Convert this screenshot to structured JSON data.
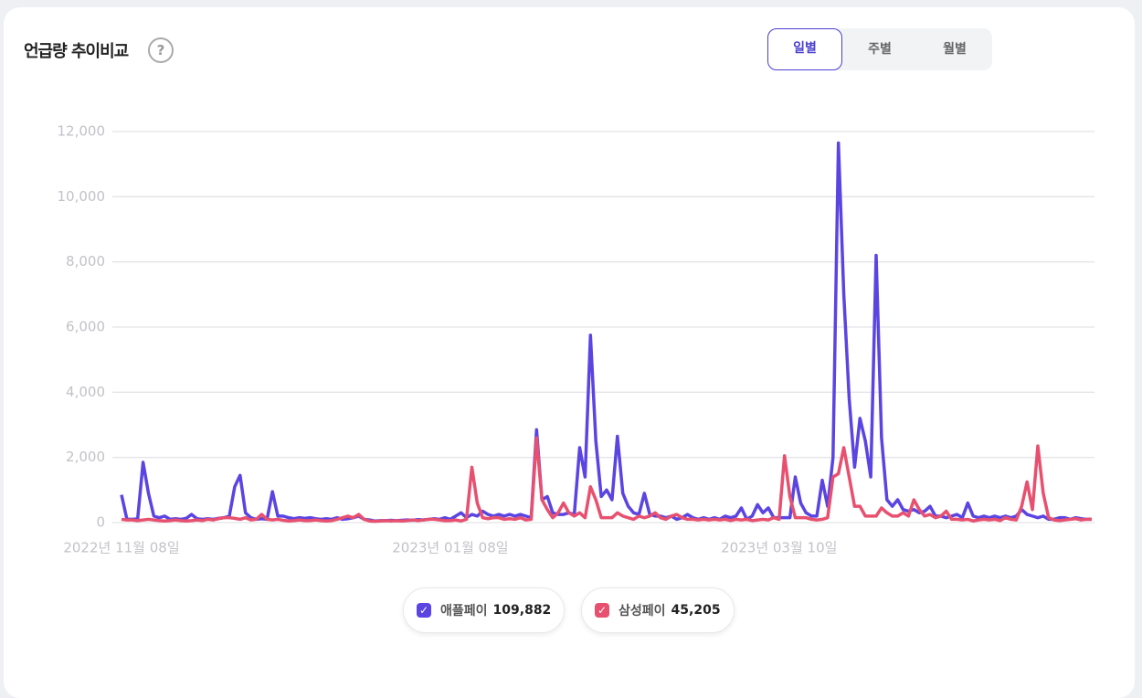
{
  "header": {
    "title": "언급량 추이비교",
    "help": "?"
  },
  "tabs": [
    "일별",
    "주별",
    "월별"
  ],
  "selected_tab": 0,
  "chart_data": {
    "type": "line",
    "categories": [
      "2022년 11월 08일",
      null,
      null,
      null,
      null,
      null,
      null,
      null,
      null,
      null,
      null,
      null,
      null,
      null,
      null,
      null,
      null,
      null,
      null,
      null,
      null,
      null,
      null,
      null,
      null,
      null,
      null,
      null,
      null,
      null,
      null,
      null,
      null,
      null,
      null,
      null,
      null,
      null,
      null,
      null,
      null,
      null,
      null,
      null,
      null,
      null,
      null,
      null,
      null,
      null,
      null,
      null,
      null,
      null,
      null,
      null,
      null,
      null,
      null,
      null,
      null,
      "2023년 01월 08일",
      null,
      null,
      null,
      null,
      null,
      null,
      null,
      null,
      null,
      null,
      null,
      null,
      null,
      null,
      null,
      null,
      null,
      null,
      null,
      null,
      null,
      null,
      null,
      null,
      null,
      null,
      null,
      null,
      null,
      null,
      null,
      null,
      null,
      null,
      null,
      null,
      null,
      null,
      null,
      null,
      null,
      null,
      null,
      null,
      null,
      null,
      null,
      null,
      null,
      null,
      null,
      null,
      null,
      null,
      null,
      null,
      null,
      null,
      null,
      null,
      "2023년 03월 10일",
      null,
      null,
      null,
      null,
      null,
      null,
      null,
      null,
      null,
      null,
      null,
      null,
      null,
      null,
      null,
      null,
      null,
      null,
      null,
      null,
      null,
      null,
      null,
      null,
      null,
      null,
      null,
      null,
      null,
      null,
      null,
      null,
      null,
      null,
      null,
      null,
      null,
      null,
      null,
      null,
      null,
      null,
      null,
      null,
      null,
      null,
      null,
      null,
      null,
      null,
      null,
      null,
      null,
      null,
      null,
      null,
      null,
      null
    ],
    "series": [
      {
        "name": "애플페이",
        "color": "#5a45e2",
        "total": "109,882",
        "values": [
          850,
          100,
          100,
          120,
          1850,
          900,
          200,
          150,
          200,
          100,
          120,
          100,
          130,
          250,
          120,
          100,
          120,
          100,
          130,
          150,
          200,
          1100,
          1450,
          300,
          150,
          100,
          120,
          100,
          950,
          200,
          200,
          150,
          120,
          150,
          130,
          150,
          120,
          100,
          120,
          100,
          150,
          100,
          120,
          150,
          200,
          100,
          80,
          50,
          60,
          60,
          70,
          60,
          70,
          80,
          70,
          90,
          80,
          100,
          120,
          100,
          150,
          100,
          200,
          300,
          150,
          250,
          200,
          350,
          250,
          200,
          250,
          200,
          250,
          200,
          250,
          200,
          150,
          2850,
          700,
          800,
          300,
          250,
          250,
          300,
          250,
          2300,
          1400,
          5750,
          2500,
          800,
          1000,
          700,
          2650,
          900,
          500,
          300,
          250,
          900,
          250,
          200,
          200,
          150,
          200,
          100,
          150,
          250,
          150,
          100,
          150,
          100,
          150,
          100,
          200,
          150,
          200,
          450,
          100,
          200,
          550,
          300,
          450,
          150,
          150,
          150,
          150,
          1400,
          600,
          300,
          200,
          200,
          1300,
          500,
          2000,
          11650,
          7000,
          3800,
          1700,
          3200,
          2500,
          1400,
          8200,
          2600,
          700,
          500,
          700,
          400,
          350,
          400,
          300,
          350,
          500,
          200,
          200,
          150,
          200,
          250,
          150,
          600,
          200,
          150,
          200,
          150,
          200,
          150,
          200,
          150,
          200,
          400,
          250,
          200,
          150,
          200,
          100,
          100,
          150,
          150,
          100,
          150,
          120,
          100,
          100
        ]
      },
      {
        "name": "삼성페이",
        "color": "#e8506f",
        "total": "45,205",
        "values": [
          100,
          80,
          80,
          60,
          80,
          100,
          80,
          60,
          50,
          60,
          80,
          60,
          50,
          60,
          80,
          60,
          100,
          80,
          120,
          150,
          150,
          130,
          100,
          150,
          80,
          100,
          250,
          100,
          80,
          100,
          70,
          50,
          60,
          80,
          60,
          60,
          80,
          60,
          50,
          60,
          100,
          150,
          200,
          150,
          250,
          100,
          50,
          40,
          50,
          60,
          50,
          60,
          50,
          60,
          80,
          60,
          80,
          100,
          100,
          80,
          60,
          60,
          80,
          50,
          100,
          1700,
          600,
          150,
          120,
          150,
          150,
          100,
          120,
          100,
          150,
          80,
          100,
          2600,
          700,
          400,
          150,
          300,
          600,
          300,
          200,
          300,
          150,
          1100,
          700,
          150,
          150,
          150,
          300,
          200,
          150,
          100,
          200,
          150,
          200,
          300,
          150,
          100,
          200,
          250,
          150,
          100,
          100,
          80,
          100,
          80,
          100,
          80,
          100,
          60,
          100,
          80,
          100,
          60,
          80,
          100,
          80,
          150,
          100,
          2050,
          800,
          150,
          150,
          150,
          100,
          80,
          100,
          150,
          1400,
          1500,
          2300,
          1400,
          500,
          500,
          200,
          200,
          200,
          450,
          300,
          200,
          200,
          300,
          200,
          700,
          400,
          200,
          250,
          150,
          200,
          350,
          100,
          100,
          80,
          100,
          50,
          80,
          100,
          80,
          100,
          60,
          150,
          100,
          80,
          500,
          1250,
          400,
          2350,
          900,
          150,
          80,
          60,
          80,
          100,
          120,
          80,
          100,
          100
        ]
      }
    ],
    "ylim": [
      0,
      12000
    ],
    "yticks": [
      0,
      {
        "value": 2000,
        "label": "2,000"
      },
      {
        "value": 4000,
        "label": "4,000"
      },
      {
        "value": 6000,
        "label": "6,000"
      },
      {
        "value": 8000,
        "label": "8,000"
      },
      {
        "value": 10000,
        "label": "10,000"
      },
      {
        "value": 12000,
        "label": "12,000"
      }
    ],
    "grid": true
  }
}
